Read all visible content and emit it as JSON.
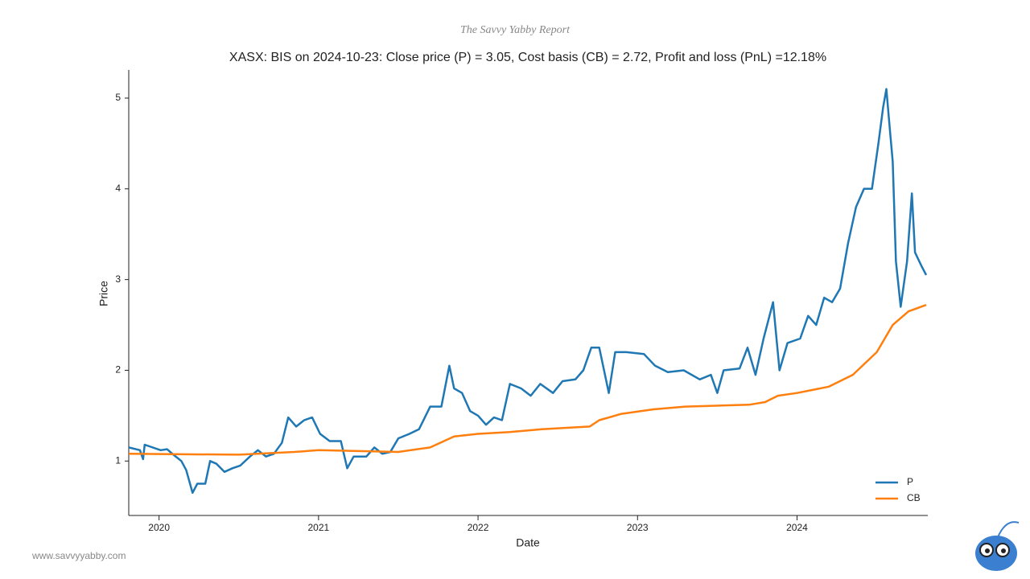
{
  "chart_data": {
    "type": "line",
    "header": "The Savvy Yabby Report",
    "title": "XASX: BIS on 2024-10-23: Close price (P) = 3.05, Cost basis (CB) = 2.72, Profit and loss (PnL) =12.18%",
    "x_label": "Date",
    "y_label": "Price",
    "footer": "www.savvyyabby.com",
    "xlim": [
      2019.81,
      2024.82
    ],
    "xticks": [
      2020,
      2021,
      2022,
      2023,
      2024
    ],
    "ylim": [
      0.4,
      5.31
    ],
    "yticks": [
      1,
      2,
      3,
      4,
      5
    ],
    "legend": "lower right",
    "series": [
      {
        "name": "P",
        "color": "#1f77b4",
        "x": [
          2019.81,
          2019.88,
          2019.9,
          2019.91,
          2020.01,
          2020.05,
          2020.09,
          2020.14,
          2020.17,
          2020.21,
          2020.24,
          2020.29,
          2020.32,
          2020.36,
          2020.41,
          2020.46,
          2020.51,
          2020.57,
          2020.62,
          2020.67,
          2020.72,
          2020.77,
          2020.81,
          2020.86,
          2020.91,
          2020.96,
          2021.01,
          2021.07,
          2021.14,
          2021.18,
          2021.22,
          2021.3,
          2021.35,
          2021.4,
          2021.45,
          2021.5,
          2021.57,
          2021.63,
          2021.7,
          2021.77,
          2021.82,
          2021.85,
          2021.9,
          2021.95,
          2022.0,
          2022.05,
          2022.1,
          2022.15,
          2022.2,
          2022.27,
          2022.33,
          2022.39,
          2022.47,
          2022.53,
          2022.61,
          2022.66,
          2022.71,
          2022.76,
          2022.82,
          2022.86,
          2022.93,
          2023.04,
          2023.11,
          2023.19,
          2023.29,
          2023.39,
          2023.46,
          2023.5,
          2023.54,
          2023.64,
          2023.69,
          2023.74,
          2023.79,
          2023.85,
          2023.89,
          2023.94,
          2024.02,
          2024.07,
          2024.12,
          2024.17,
          2024.22,
          2024.27,
          2024.32,
          2024.37,
          2024.42,
          2024.47,
          2024.51,
          2024.54,
          2024.56,
          2024.58,
          2024.6,
          2024.62,
          2024.65,
          2024.69,
          2024.72,
          2024.74,
          2024.78,
          2024.81
        ],
        "values": [
          1.15,
          1.12,
          1.02,
          1.18,
          1.12,
          1.13,
          1.07,
          1.0,
          0.9,
          0.65,
          0.75,
          0.75,
          1.0,
          0.97,
          0.88,
          0.92,
          0.95,
          1.05,
          1.12,
          1.05,
          1.08,
          1.2,
          1.48,
          1.38,
          1.45,
          1.48,
          1.3,
          1.22,
          1.22,
          0.92,
          1.05,
          1.05,
          1.15,
          1.08,
          1.1,
          1.25,
          1.3,
          1.35,
          1.6,
          1.6,
          2.05,
          1.8,
          1.75,
          1.55,
          1.5,
          1.4,
          1.48,
          1.45,
          1.85,
          1.8,
          1.72,
          1.85,
          1.75,
          1.88,
          1.9,
          2.0,
          2.25,
          2.25,
          1.75,
          2.2,
          2.2,
          2.18,
          2.05,
          1.98,
          2.0,
          1.9,
          1.95,
          1.75,
          2.0,
          2.02,
          2.25,
          1.95,
          2.35,
          2.75,
          2.0,
          2.3,
          2.35,
          2.6,
          2.5,
          2.8,
          2.75,
          2.9,
          3.4,
          3.8,
          4.0,
          4.0,
          4.5,
          4.9,
          5.1,
          4.7,
          4.3,
          3.2,
          2.7,
          3.2,
          3.95,
          3.3,
          3.15,
          3.05
        ]
      },
      {
        "name": "CB",
        "color": "#ff7f0e",
        "x": [
          2019.81,
          2020.5,
          2020.85,
          2021.0,
          2021.5,
          2021.7,
          2021.85,
          2022.0,
          2022.2,
          2022.4,
          2022.7,
          2022.76,
          2022.9,
          2023.1,
          2023.3,
          2023.7,
          2023.8,
          2023.88,
          2024.0,
          2024.2,
          2024.35,
          2024.5,
          2024.6,
          2024.7,
          2024.81
        ],
        "values": [
          1.08,
          1.07,
          1.1,
          1.12,
          1.1,
          1.15,
          1.27,
          1.3,
          1.32,
          1.35,
          1.38,
          1.45,
          1.52,
          1.57,
          1.6,
          1.62,
          1.65,
          1.72,
          1.75,
          1.82,
          1.95,
          2.2,
          2.5,
          2.65,
          2.72
        ]
      }
    ]
  }
}
